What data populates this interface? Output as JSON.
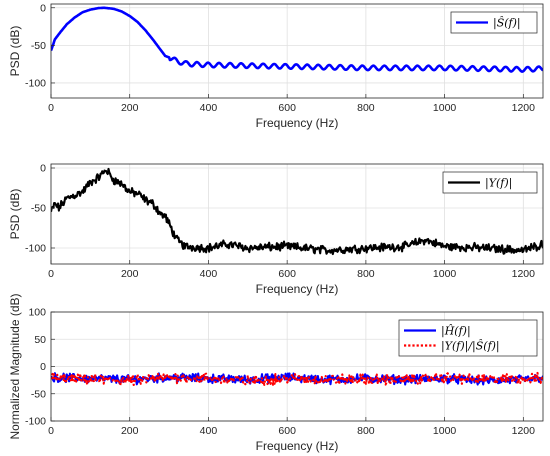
{
  "chart_data": [
    {
      "type": "line",
      "xlabel": "Frequency (Hz)",
      "ylabel": "PSD (dB)",
      "xlim": [
        0,
        1250
      ],
      "ylim": [
        -120,
        5
      ],
      "xticks": [
        "0",
        "200",
        "400",
        "600",
        "800",
        "1000",
        "1200"
      ],
      "yticks": [
        "0",
        "-50",
        "-100"
      ],
      "grid": true,
      "legend_position": "top-right",
      "series": [
        {
          "name": "|Ŝ(f)|",
          "color": "#0000ff",
          "style": "solid",
          "x": [
            0,
            10,
            20,
            40,
            60,
            80,
            100,
            120,
            135,
            160,
            180,
            200,
            220,
            240,
            260,
            280,
            290,
            300,
            320,
            340,
            360,
            400,
            500,
            600,
            700,
            800,
            900,
            1000,
            1100,
            1200,
            1250
          ],
          "y": [
            -57,
            -42,
            -35,
            -22,
            -13,
            -6,
            -2.5,
            -0.5,
            0,
            -1.5,
            -5,
            -11,
            -19,
            -30,
            -43,
            -57,
            -64,
            -66,
            -71,
            -74,
            -75,
            -76,
            -77,
            -78,
            -79,
            -80,
            -80,
            -80,
            -81,
            -82,
            -81
          ],
          "ripple_amplitude_db": 3,
          "ripple_period_hz": 28
        }
      ]
    },
    {
      "type": "line",
      "xlabel": "Frequency (Hz)",
      "ylabel": "PSD (dB)",
      "xlim": [
        0,
        1250
      ],
      "ylim": [
        -120,
        5
      ],
      "xticks": [
        "0",
        "200",
        "400",
        "600",
        "800",
        "1000",
        "1200"
      ],
      "yticks": [
        "0",
        "-50",
        "-100"
      ],
      "grid": true,
      "legend_position": "top-right",
      "series": [
        {
          "name": "|Y(f)|",
          "color": "#000000",
          "style": "solid",
          "x": [
            0,
            10,
            20,
            40,
            60,
            80,
            100,
            120,
            135,
            140,
            160,
            180,
            200,
            220,
            240,
            260,
            280,
            290,
            300,
            320,
            340,
            400,
            450,
            500,
            600,
            700,
            800,
            900,
            950,
            1000,
            1100,
            1200,
            1250
          ],
          "y": [
            -55,
            -45,
            -50,
            -38,
            -34,
            -30,
            -18,
            -12,
            -5,
            -2,
            -15,
            -20,
            -30,
            -32,
            -40,
            -45,
            -58,
            -60,
            -70,
            -90,
            -98,
            -100,
            -95,
            -100,
            -98,
            -103,
            -100,
            -98,
            -90,
            -98,
            -100,
            -103,
            -95
          ],
          "noise_amplitude_db": 8
        }
      ]
    },
    {
      "type": "line",
      "xlabel": "Frequency (Hz)",
      "ylabel": "Normalized Magnitude (dB)",
      "xlim": [
        0,
        1250
      ],
      "ylim": [
        -100,
        100
      ],
      "xticks": [
        "0",
        "200",
        "400",
        "600",
        "800",
        "1000",
        "1200"
      ],
      "yticks": [
        "100",
        "50",
        "0",
        "-50",
        "-100"
      ],
      "grid": true,
      "legend_position": "top-right",
      "series": [
        {
          "name": "|Ĥ(f)|",
          "color": "#0000ff",
          "style": "solid",
          "x": [
            0,
            100,
            200,
            300,
            400,
            500,
            600,
            700,
            800,
            900,
            1000,
            1100,
            1200,
            1250
          ],
          "y": [
            -20,
            -22,
            -24,
            -20,
            -22,
            -24,
            -20,
            -24,
            -22,
            -24,
            -22,
            -26,
            -24,
            -20
          ],
          "noise_amplitude_db": 12
        },
        {
          "name": "|Y(f)|/|Ŝ(f)|",
          "color": "#ff0000",
          "style": "dotted",
          "x": [
            0,
            100,
            200,
            300,
            400,
            500,
            600,
            700,
            800,
            900,
            1000,
            1100,
            1200,
            1250
          ],
          "y": [
            -22,
            -24,
            -26,
            -20,
            -22,
            -26,
            -22,
            -24,
            -24,
            -24,
            -20,
            -24,
            -22,
            -22
          ],
          "noise_amplitude_db": 14
        }
      ]
    }
  ]
}
